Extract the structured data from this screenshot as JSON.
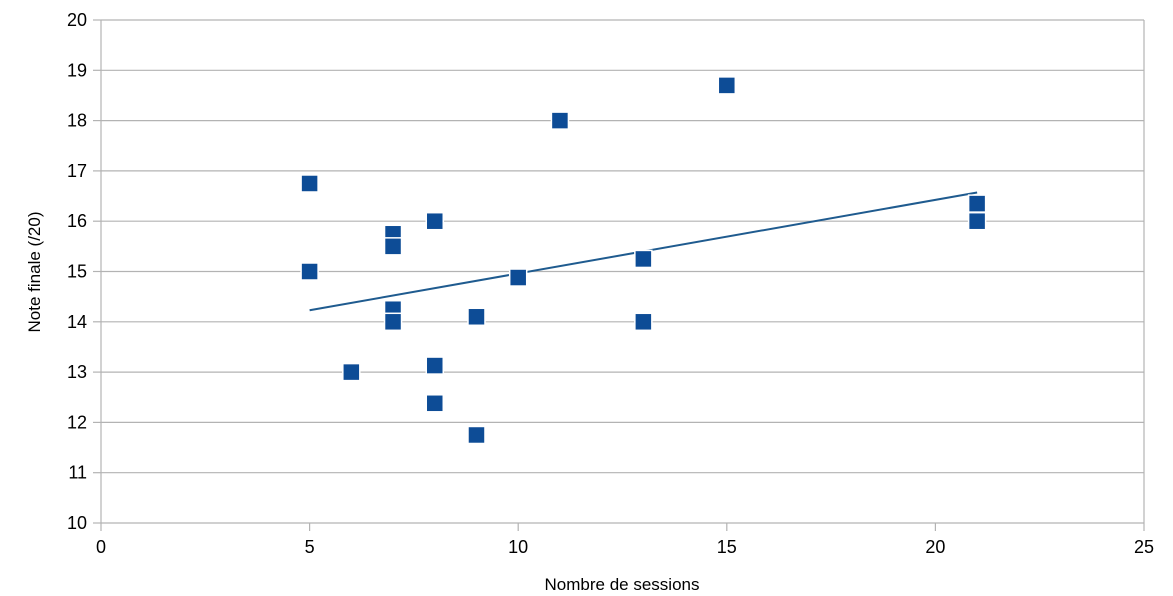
{
  "chart_data": {
    "type": "scatter",
    "title": "",
    "xlabel": "Nombre de sessions",
    "ylabel": "Note finale (/20)",
    "xlim": [
      0,
      25
    ],
    "ylim": [
      10,
      20
    ],
    "xticks": [
      0,
      5,
      10,
      15,
      20,
      25
    ],
    "yticks": [
      10,
      11,
      12,
      13,
      14,
      15,
      16,
      17,
      18,
      19,
      20
    ],
    "grid": "horizontal",
    "legend": "none",
    "series": [
      {
        "points": [
          {
            "x": 5,
            "y": 16.75
          },
          {
            "x": 5,
            "y": 15.0
          },
          {
            "x": 6,
            "y": 13.0
          },
          {
            "x": 7,
            "y": 15.75
          },
          {
            "x": 7,
            "y": 15.5
          },
          {
            "x": 7,
            "y": 14.25
          },
          {
            "x": 7,
            "y": 14.0
          },
          {
            "x": 8,
            "y": 16.0
          },
          {
            "x": 8,
            "y": 13.13
          },
          {
            "x": 8,
            "y": 12.38
          },
          {
            "x": 9,
            "y": 14.1
          },
          {
            "x": 9,
            "y": 11.75
          },
          {
            "x": 10,
            "y": 14.88
          },
          {
            "x": 11,
            "y": 18.0
          },
          {
            "x": 13,
            "y": 15.25
          },
          {
            "x": 13,
            "y": 14.0
          },
          {
            "x": 15,
            "y": 18.7
          },
          {
            "x": 21,
            "y": 16.35
          },
          {
            "x": 21,
            "y": 16.0
          }
        ]
      }
    ],
    "trendline": {
      "x": [
        5,
        21
      ],
      "y": [
        14.23,
        16.57
      ]
    },
    "colors": {
      "marker": "#0d4c96",
      "marker_stroke": "#ffffff",
      "trendline": "#1f5b8f",
      "grid": "#b3b3b3",
      "axis": "#b3b3b3"
    }
  }
}
